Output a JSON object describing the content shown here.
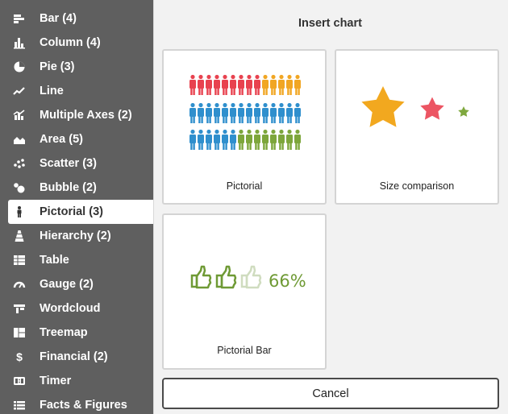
{
  "sidebar": {
    "items": [
      {
        "label": "Bar (4)",
        "icon": "bar-chart-icon"
      },
      {
        "label": "Column (4)",
        "icon": "column-chart-icon"
      },
      {
        "label": "Pie (3)",
        "icon": "pie-chart-icon"
      },
      {
        "label": "Line",
        "icon": "line-chart-icon"
      },
      {
        "label": "Multiple Axes (2)",
        "icon": "multiple-axes-icon"
      },
      {
        "label": "Area (5)",
        "icon": "area-chart-icon"
      },
      {
        "label": "Scatter (3)",
        "icon": "scatter-chart-icon"
      },
      {
        "label": "Bubble (2)",
        "icon": "bubble-chart-icon"
      },
      {
        "label": "Pictorial (3)",
        "icon": "person-icon"
      },
      {
        "label": "Hierarchy (2)",
        "icon": "hierarchy-icon"
      },
      {
        "label": "Table",
        "icon": "table-icon"
      },
      {
        "label": "Gauge (2)",
        "icon": "gauge-icon"
      },
      {
        "label": "Wordcloud",
        "icon": "wordcloud-icon"
      },
      {
        "label": "Treemap",
        "icon": "treemap-icon"
      },
      {
        "label": "Financial (2)",
        "icon": "dollar-icon"
      },
      {
        "label": "Timer",
        "icon": "timer-icon"
      },
      {
        "label": "Facts & Figures",
        "icon": "facts-icon"
      }
    ],
    "active_index": 8
  },
  "dialog": {
    "title": "Insert chart",
    "cancel_label": "Cancel"
  },
  "cards": [
    {
      "label": "Pictorial"
    },
    {
      "label": "Size comparison"
    },
    {
      "label": "Pictorial Bar",
      "value_text": "66%"
    }
  ],
  "colors": {
    "sidebar_bg": "#5f5f5f",
    "red": "#e8424f",
    "orange": "#f1a623",
    "blue": "#2f8fcd",
    "green": "#7da63b",
    "star_gold": "#f2a81f",
    "star_red": "#ec5563",
    "star_green": "#7fa83e",
    "thumb_green": "#6f9a35",
    "thumb_light": "#cfdcbf"
  }
}
